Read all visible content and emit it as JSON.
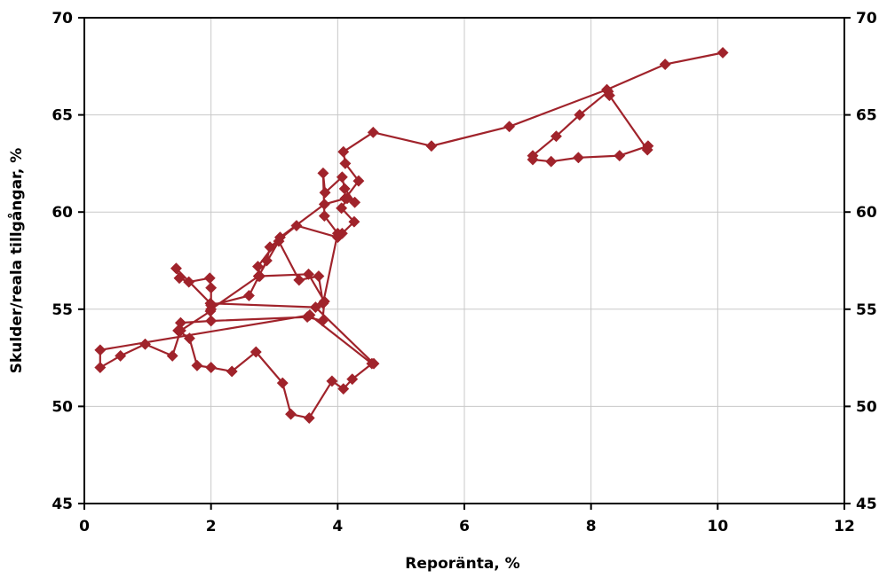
{
  "chart_data": {
    "type": "line",
    "title": "",
    "xlabel": "Reporänta, %",
    "ylabel": "Skulder/reala tillgångar, %",
    "xlim": [
      0,
      12
    ],
    "ylim": [
      45,
      70
    ],
    "x_ticks": [
      0,
      2,
      4,
      6,
      8,
      10,
      12
    ],
    "y_ticks": [
      45,
      50,
      55,
      60,
      65,
      70
    ],
    "x_tick_labels": [
      "0",
      "2",
      "4",
      "6",
      "8",
      "10",
      "12"
    ],
    "y_tick_labels": [
      "45",
      "50",
      "55",
      "60",
      "65",
      "70"
    ],
    "y_tick_labels_right": [
      "45",
      "50",
      "55",
      "60",
      "65",
      "70"
    ],
    "grid": true,
    "series_color": "#A0232B",
    "marker": "diamond",
    "points": [
      [
        10.08,
        68.2
      ],
      [
        9.17,
        67.6
      ],
      [
        8.25,
        66.3
      ],
      [
        6.71,
        64.4
      ],
      [
        5.48,
        63.4
      ],
      [
        4.56,
        64.1
      ],
      [
        4.09,
        63.1
      ],
      [
        4.12,
        62.5
      ],
      [
        4.33,
        61.6
      ],
      [
        4.12,
        60.7
      ],
      [
        3.79,
        60.4
      ],
      [
        3.09,
        58.7
      ],
      [
        2.74,
        57.2
      ],
      [
        2.77,
        56.7
      ],
      [
        3.54,
        56.8
      ],
      [
        3.79,
        55.4
      ],
      [
        3.76,
        54.4
      ],
      [
        3.52,
        54.6
      ],
      [
        2.0,
        54.4
      ],
      [
        1.52,
        54.3
      ],
      [
        1.48,
        53.9
      ],
      [
        1.66,
        53.5
      ],
      [
        1.78,
        52.1
      ],
      [
        2.0,
        52.0
      ],
      [
        2.33,
        51.8
      ],
      [
        2.71,
        52.8
      ],
      [
        3.13,
        51.2
      ],
      [
        3.26,
        49.6
      ],
      [
        3.55,
        49.4
      ],
      [
        3.91,
        51.3
      ],
      [
        4.09,
        50.9
      ],
      [
        4.23,
        51.4
      ],
      [
        4.54,
        52.2
      ],
      [
        3.56,
        54.7
      ],
      [
        0.25,
        52.9
      ],
      [
        0.25,
        52.0
      ],
      [
        0.57,
        52.6
      ],
      [
        0.96,
        53.2
      ],
      [
        1.39,
        52.6
      ],
      [
        1.52,
        53.9
      ],
      [
        1.99,
        54.9
      ],
      [
        2.0,
        55.2
      ],
      [
        2.6,
        55.7
      ],
      [
        2.88,
        57.5
      ],
      [
        2.93,
        58.2
      ],
      [
        3.35,
        59.3
      ],
      [
        4.0,
        58.7
      ],
      [
        4.07,
        58.9
      ],
      [
        4.26,
        59.5
      ],
      [
        4.06,
        60.2
      ],
      [
        4.15,
        60.7
      ],
      [
        4.27,
        60.5
      ],
      [
        4.11,
        61.2
      ],
      [
        4.07,
        61.8
      ],
      [
        3.8,
        61.0
      ],
      [
        3.77,
        62.0
      ],
      [
        3.79,
        59.8
      ],
      [
        4.0,
        58.9
      ],
      [
        3.77,
        55.3
      ],
      [
        3.7,
        56.7
      ],
      [
        3.39,
        56.5
      ],
      [
        3.07,
        58.5
      ],
      [
        2.75,
        56.7
      ],
      [
        2.0,
        55.0
      ],
      [
        2.0,
        56.1
      ],
      [
        1.98,
        56.6
      ],
      [
        1.65,
        56.4
      ],
      [
        1.5,
        56.6
      ],
      [
        1.45,
        57.1
      ],
      [
        1.99,
        55.3
      ],
      [
        3.65,
        55.1
      ],
      [
        4.57,
        52.2
      ]
    ],
    "points2": [
      [
        8.29,
        66.0
      ],
      [
        8.89,
        63.2
      ],
      [
        8.9,
        63.4
      ],
      [
        8.45,
        62.9
      ],
      [
        7.8,
        62.8
      ],
      [
        7.37,
        62.6
      ],
      [
        7.08,
        62.7
      ],
      [
        7.08,
        62.9
      ],
      [
        7.45,
        63.9
      ],
      [
        7.82,
        65.0
      ],
      [
        8.27,
        66.2
      ]
    ]
  }
}
